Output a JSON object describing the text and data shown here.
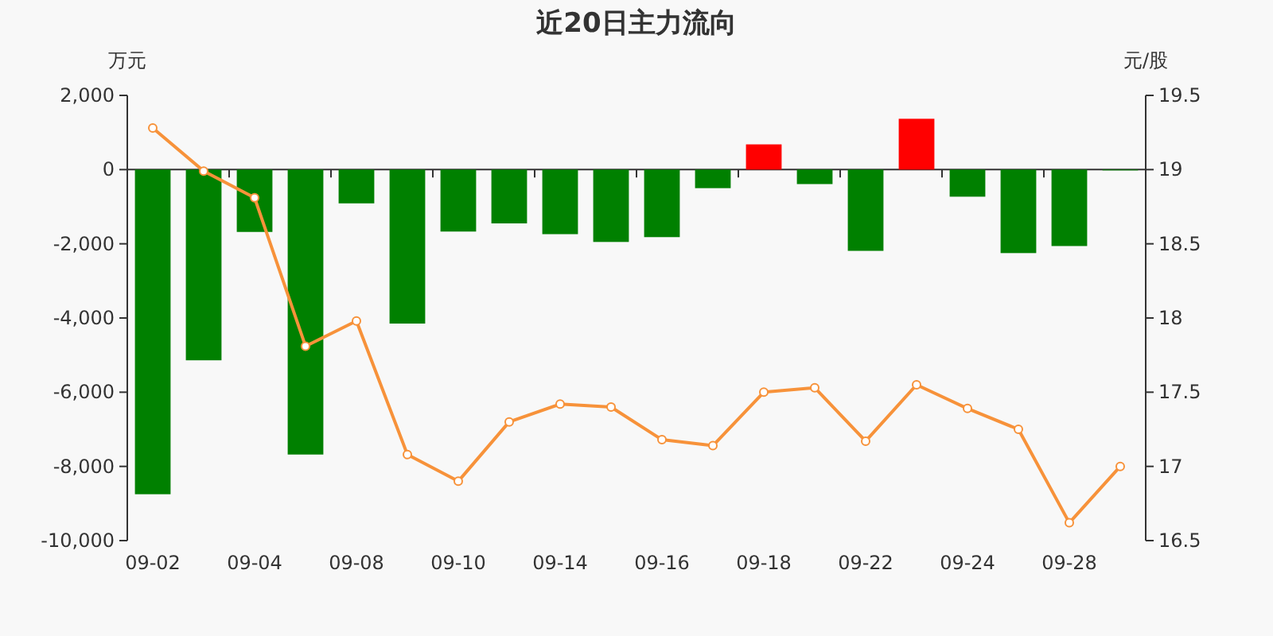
{
  "chart_data": {
    "type": "bar",
    "title": "近20日主力流向",
    "ylabel": "万元",
    "y2label": "元/股",
    "categories": [
      "09-02",
      null,
      "09-04",
      null,
      "09-08",
      null,
      "09-10",
      null,
      "09-14",
      null,
      "09-16",
      null,
      "09-18",
      null,
      "09-22",
      null,
      "09-24",
      null,
      "09-28",
      null
    ],
    "series": [
      {
        "colors": [
          "#008000",
          "#008000",
          "#008000",
          "#008000",
          "#008000",
          "#008000",
          "#008000",
          "#008000",
          "#008000",
          "#008000",
          "#008000",
          "#008000",
          "#ff0000",
          "#008000",
          "#008000",
          "#ff0000",
          "#008000",
          "#008000",
          "#008000",
          "#008000"
        ],
        "values": [
          -8750,
          -5140,
          -1680,
          -7680,
          -910,
          -4150,
          -1670,
          -1450,
          -1740,
          -1950,
          -1820,
          -500,
          680,
          -390,
          -2190,
          1370,
          -730,
          -2250,
          -2060,
          -20
        ]
      },
      {
        "type": "line",
        "axis": "y2",
        "color": "#f7923a",
        "marker": "circle",
        "values": [
          19.28,
          18.99,
          18.81,
          17.81,
          17.98,
          17.08,
          16.9,
          17.3,
          17.42,
          17.4,
          17.18,
          17.14,
          17.5,
          17.53,
          17.17,
          17.55,
          17.39,
          17.25,
          16.62,
          17.0
        ]
      }
    ],
    "ylim": [
      -10000,
      2000
    ],
    "yticks": [
      {
        "value": -10000,
        "label": "-10,000"
      },
      {
        "value": -8000,
        "label": "-8,000"
      },
      {
        "value": -6000,
        "label": "-6,000"
      },
      {
        "value": -4000,
        "label": "-4,000"
      },
      {
        "value": -2000,
        "label": "-2,000"
      },
      0,
      {
        "value": 2000,
        "label": "2,000"
      }
    ],
    "y2lim": [
      16.5,
      19.5
    ],
    "y2ticks": [
      16.5,
      17,
      17.5,
      18,
      18.5,
      19,
      19.5
    ]
  }
}
